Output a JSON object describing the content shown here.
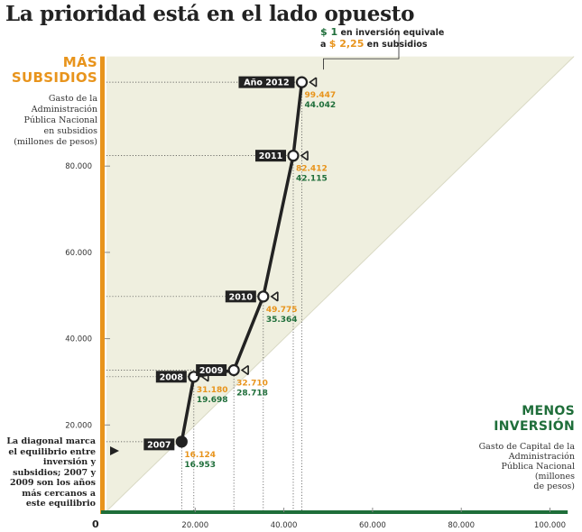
{
  "title": "La prioridad está en el lado opuesto",
  "colors": {
    "orange": "#e8941c",
    "green": "#1f6e3a",
    "line": "#222222",
    "triangle": "#efefdf",
    "year_box": "#222222"
  },
  "icons": [
    "arrow-right-icon"
  ],
  "y_axis": {
    "title_line1": "MÁS",
    "title_line2": "SUBSIDIOS",
    "subtitle_lines": [
      "Gasto de la",
      "Administración",
      "Pública Nacional",
      "en subsidios",
      "(millones de pesos)"
    ]
  },
  "x_axis": {
    "title_line1": "MENOS",
    "title_line2": "INVERSIÓN",
    "subtitle_lines": [
      "Gasto de Capital  de la",
      "Administración",
      "Pública Nacional",
      "(millones",
      "de pesos)"
    ]
  },
  "origin_label": "0",
  "diagonal_note_lines": [
    "La diagonal marca",
    "el equilibrio entre",
    "inversión y",
    "subsidios; 2007 y",
    "2009 son los años",
    "más cercanos a",
    "este equilibrio"
  ],
  "callout": {
    "amount1": "$ 1",
    "text1": " en inversión equivale",
    "prefix2": "a ",
    "amount2": "$ 2,25",
    "text2": " en subsidios"
  },
  "chart_data": {
    "type": "line",
    "x_ticks": [
      "20.000",
      "40.000",
      "60.000",
      "80.000",
      "100.000"
    ],
    "x_tick_values": [
      20000,
      40000,
      60000,
      80000,
      100000
    ],
    "y_ticks": [
      "20.000",
      "40.000",
      "60.000",
      "80.000"
    ],
    "y_tick_values": [
      20000,
      40000,
      60000,
      80000
    ],
    "xlim": [
      0,
      104000
    ],
    "ylim": [
      0,
      105000
    ],
    "diagonal": "y = x",
    "points": [
      {
        "year": "2007",
        "x": 16953,
        "y": 16124,
        "subsidios_label": "16.124",
        "inversion_label": "16.953",
        "filled": true
      },
      {
        "year": "2008",
        "x": 19698,
        "y": 31180,
        "subsidios_label": "31.180",
        "inversion_label": "19.698",
        "filled": false
      },
      {
        "year": "2009",
        "x": 28718,
        "y": 32710,
        "subsidios_label": "32.710",
        "inversion_label": "28.718",
        "filled": false
      },
      {
        "year": "2010",
        "x": 35364,
        "y": 49775,
        "subsidios_label": "49.775",
        "inversion_label": "35.364",
        "filled": false
      },
      {
        "year": "2011",
        "x": 42115,
        "y": 82412,
        "subsidios_label": "82.412",
        "inversion_label": "42.115",
        "filled": false
      },
      {
        "year": "Año 2012",
        "x": 44042,
        "y": 99447,
        "subsidios_label": "99.447",
        "inversion_label": "44.042",
        "filled": false
      }
    ]
  }
}
